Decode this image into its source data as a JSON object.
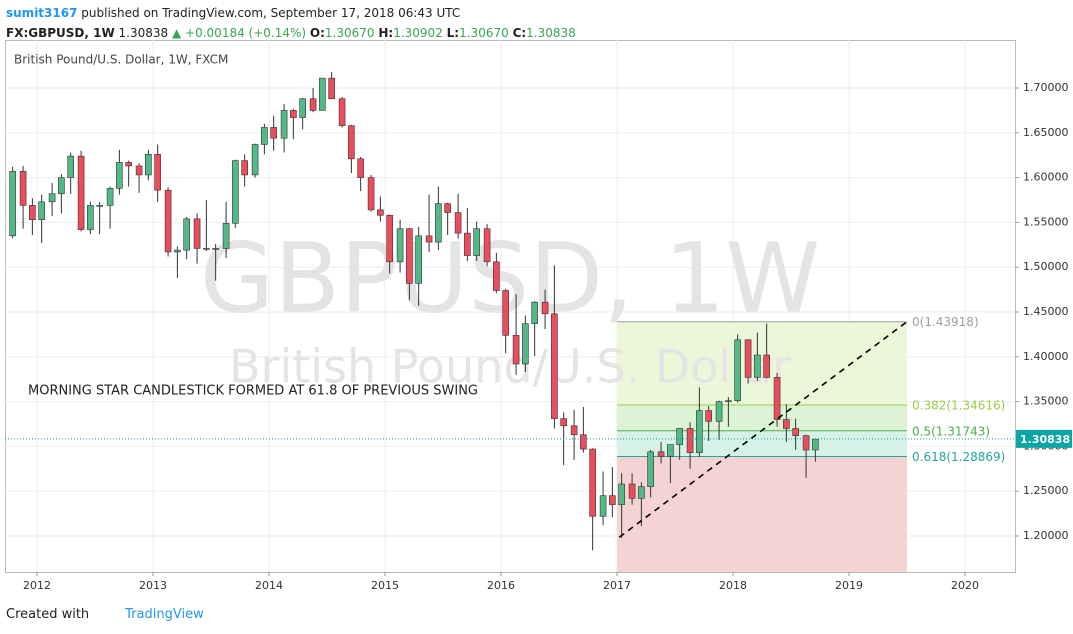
{
  "header": {
    "author": "sumit3167",
    "published": "published on TradingView.com, September 17, 2018 06:43 UTC",
    "symbol": "FX:GBPUSD, 1W",
    "last": "1.30838",
    "change": "▲ +0.00184 (+0.14%)",
    "o_label": "O:",
    "o": "1.30670",
    "h_label": "H:",
    "h": "1.30902",
    "l_label": "L:",
    "l": "1.30670",
    "c_label": "C:",
    "c": "1.30838"
  },
  "footer": {
    "created": "Created with",
    "brand": "TradingView"
  },
  "chart_data": {
    "type": "candlestick",
    "title": "British Pound/U.S. Dollar, 1W, FXCM",
    "watermark": "GBPUSD, 1W",
    "watermark_sub": "British Pound/U.S. Dollar",
    "annotation": "MORNING STAR CANDLESTICK FORMED AT 61.8 OF PREVIOUS SWING",
    "up_color": "#53b987",
    "down_color": "#eb4d5c",
    "x": [
      2011.79,
      2011.88,
      2011.96,
      2012.04,
      2012.13,
      2012.21,
      2012.29,
      2012.38,
      2012.46,
      2012.54,
      2012.63,
      2012.71,
      2012.79,
      2012.88,
      2012.96,
      2013.04,
      2013.13,
      2013.21,
      2013.29,
      2013.38,
      2013.46,
      2013.54,
      2013.63,
      2013.71,
      2013.79,
      2013.88,
      2013.96,
      2014.04,
      2014.13,
      2014.21,
      2014.29,
      2014.38,
      2014.46,
      2014.54,
      2014.63,
      2014.71,
      2014.79,
      2014.88,
      2014.96,
      2015.04,
      2015.13,
      2015.21,
      2015.29,
      2015.38,
      2015.46,
      2015.54,
      2015.63,
      2015.71,
      2015.79,
      2015.88,
      2015.96,
      2016.04,
      2016.13,
      2016.21,
      2016.29,
      2016.38,
      2016.46,
      2016.54,
      2016.63,
      2016.71,
      2016.79,
      2016.88,
      2016.96,
      2017.04,
      2017.13,
      2017.21,
      2017.29,
      2017.38,
      2017.46,
      2017.54,
      2017.63,
      2017.71,
      2017.79,
      2017.88,
      2017.96,
      2018.04,
      2018.13,
      2018.21,
      2018.29,
      2018.38,
      2018.46,
      2018.54,
      2018.63,
      2018.71
    ],
    "open": [
      1.535,
      1.607,
      1.569,
      1.553,
      1.573,
      1.582,
      1.6,
      1.624,
      1.542,
      1.569,
      1.569,
      1.588,
      1.617,
      1.613,
      1.603,
      1.626,
      1.586,
      1.517,
      1.519,
      1.554,
      1.521,
      1.521,
      1.521,
      1.549,
      1.619,
      1.603,
      1.637,
      1.656,
      1.644,
      1.675,
      1.667,
      1.688,
      1.675,
      1.711,
      1.688,
      1.658,
      1.621,
      1.6,
      1.564,
      1.558,
      1.506,
      1.543,
      1.482,
      1.535,
      1.528,
      1.571,
      1.561,
      1.538,
      1.513,
      1.543,
      1.506,
      1.474,
      1.424,
      1.392,
      1.437,
      1.461,
      1.448,
      1.331,
      1.323,
      1.313,
      1.297,
      1.222,
      1.245,
      1.235,
      1.258,
      1.242,
      1.255,
      1.294,
      1.289,
      1.302,
      1.32,
      1.293,
      1.34,
      1.328,
      1.35,
      1.351,
      1.419,
      1.377,
      1.402,
      1.377,
      1.33,
      1.32,
      1.312,
      1.296
    ],
    "high": [
      1.612,
      1.613,
      1.577,
      1.581,
      1.594,
      1.604,
      1.628,
      1.63,
      1.573,
      1.573,
      1.59,
      1.631,
      1.619,
      1.616,
      1.631,
      1.637,
      1.589,
      1.523,
      1.556,
      1.56,
      1.575,
      1.526,
      1.573,
      1.62,
      1.626,
      1.638,
      1.66,
      1.669,
      1.682,
      1.677,
      1.689,
      1.7,
      1.711,
      1.718,
      1.69,
      1.659,
      1.623,
      1.603,
      1.579,
      1.559,
      1.553,
      1.544,
      1.545,
      1.581,
      1.59,
      1.572,
      1.582,
      1.566,
      1.551,
      1.548,
      1.516,
      1.476,
      1.47,
      1.446,
      1.462,
      1.475,
      1.502,
      1.338,
      1.341,
      1.344,
      1.298,
      1.272,
      1.277,
      1.27,
      1.27,
      1.26,
      1.296,
      1.305,
      1.299,
      1.32,
      1.327,
      1.366,
      1.345,
      1.351,
      1.355,
      1.425,
      1.419,
      1.427,
      1.437,
      1.382,
      1.347,
      1.331,
      1.313,
      1.309
    ],
    "low": [
      1.532,
      1.543,
      1.536,
      1.527,
      1.557,
      1.56,
      1.582,
      1.54,
      1.537,
      1.537,
      1.543,
      1.581,
      1.59,
      1.583,
      1.597,
      1.573,
      1.512,
      1.488,
      1.509,
      1.504,
      1.518,
      1.485,
      1.51,
      1.544,
      1.59,
      1.6,
      1.626,
      1.63,
      1.628,
      1.643,
      1.654,
      1.673,
      1.675,
      1.688,
      1.656,
      1.605,
      1.585,
      1.562,
      1.551,
      1.493,
      1.494,
      1.463,
      1.457,
      1.517,
      1.519,
      1.536,
      1.532,
      1.507,
      1.507,
      1.501,
      1.471,
      1.404,
      1.38,
      1.383,
      1.401,
      1.431,
      1.32,
      1.279,
      1.285,
      1.293,
      1.184,
      1.212,
      1.221,
      1.198,
      1.235,
      1.211,
      1.243,
      1.281,
      1.259,
      1.285,
      1.275,
      1.288,
      1.306,
      1.307,
      1.322,
      1.349,
      1.37,
      1.373,
      1.376,
      1.322,
      1.305,
      1.296,
      1.265,
      1.283
    ],
    "close": [
      1.607,
      1.569,
      1.553,
      1.573,
      1.582,
      1.6,
      1.624,
      1.542,
      1.569,
      1.569,
      1.588,
      1.617,
      1.613,
      1.603,
      1.626,
      1.586,
      1.517,
      1.519,
      1.554,
      1.521,
      1.521,
      1.521,
      1.549,
      1.619,
      1.603,
      1.637,
      1.656,
      1.644,
      1.675,
      1.667,
      1.688,
      1.675,
      1.711,
      1.688,
      1.658,
      1.621,
      1.6,
      1.564,
      1.558,
      1.506,
      1.543,
      1.482,
      1.535,
      1.528,
      1.571,
      1.561,
      1.538,
      1.513,
      1.543,
      1.506,
      1.474,
      1.424,
      1.392,
      1.437,
      1.461,
      1.448,
      1.331,
      1.323,
      1.313,
      1.297,
      1.222,
      1.245,
      1.235,
      1.258,
      1.242,
      1.255,
      1.294,
      1.289,
      1.302,
      1.32,
      1.293,
      1.34,
      1.328,
      1.35,
      1.351,
      1.419,
      1.377,
      1.402,
      1.377,
      1.33,
      1.32,
      1.312,
      1.296,
      1.308
    ],
    "xlim": [
      2011.724,
      2020.431
    ],
    "ylim": [
      1.1598,
      1.7536
    ],
    "xticks": [
      2012,
      2013,
      2014,
      2015,
      2016,
      2017,
      2018,
      2019,
      2020
    ],
    "yticks": [
      {
        "value": 1.2,
        "label": "1.20000"
      },
      {
        "value": 1.25,
        "label": "1.25000"
      },
      {
        "value": 1.3,
        "label": "1.30000"
      },
      {
        "value": 1.35,
        "label": "1.35000"
      },
      {
        "value": 1.4,
        "label": "1.40000"
      },
      {
        "value": 1.45,
        "label": "1.45000"
      },
      {
        "value": 1.5,
        "label": "1.50000"
      },
      {
        "value": 1.55,
        "label": "1.55000"
      },
      {
        "value": 1.6,
        "label": "1.60000"
      },
      {
        "value": 1.65,
        "label": "1.65000"
      },
      {
        "value": 1.7,
        "label": "1.70000"
      }
    ],
    "grid": true,
    "last_price": {
      "value": 1.30838,
      "label": "1.30838",
      "color": "#0aa6a6"
    },
    "fib": {
      "x_range": [
        2017.0,
        2019.5
      ],
      "levels": [
        {
          "value": 1.43918,
          "label": "0(1.43918)",
          "color": "#9e9e9e",
          "fill": "#ecf6d9"
        },
        {
          "value": 1.34616,
          "label": "0.382(1.34616)",
          "color": "#9acd45",
          "fill": "#dcf3d6"
        },
        {
          "value": 1.31743,
          "label": "0.5(1.31743)",
          "color": "#4caf50",
          "fill": "#d6f1e6"
        },
        {
          "value": 1.28869,
          "label": "0.618(1.28869)",
          "color": "#26a69a",
          "fill": "#f6d3d3"
        }
      ]
    },
    "trendline": {
      "x": [
        2017.02,
        2019.5
      ],
      "y": [
        1.1986,
        1.43918
      ]
    }
  }
}
